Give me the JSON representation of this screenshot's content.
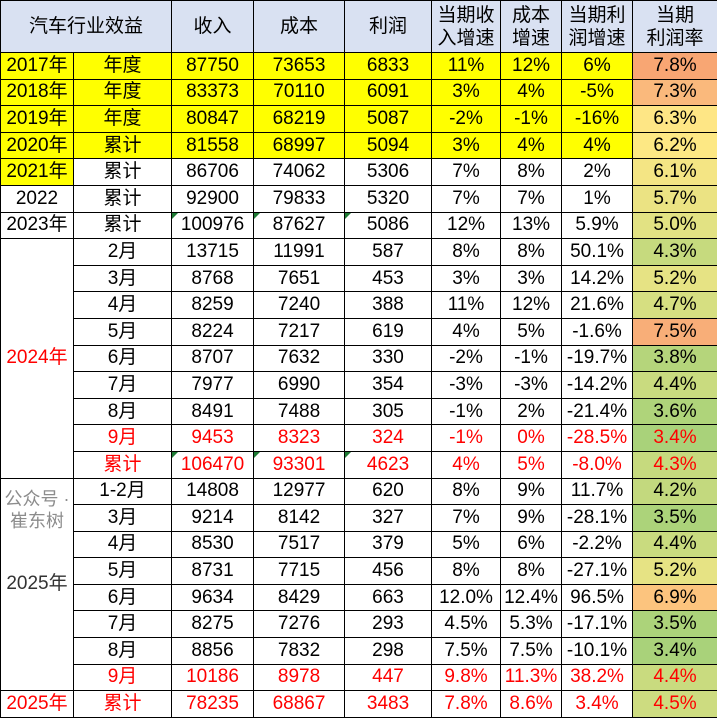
{
  "headers": [
    "汽车行业效益",
    "收入",
    "成本",
    "利润",
    "当期收\n入增速",
    "成本\n增速",
    "当期利\n润增速",
    "当期\n利润率"
  ],
  "colors": {
    "header_bg": "#d9e1f2",
    "highlight_yellow": "#ffff00",
    "red_text": "#ff0000"
  },
  "groups": [
    {
      "label": "2017年",
      "yellow": true,
      "rows": [
        {
          "period": "年度",
          "values": [
            "87750",
            "73653",
            "6833",
            "11%",
            "12%",
            "6%",
            "7.8%"
          ],
          "margin_color": "#f8a673"
        }
      ]
    },
    {
      "label": "2018年",
      "yellow": true,
      "rows": [
        {
          "period": "年度",
          "values": [
            "83373",
            "70110",
            "6091",
            "3%",
            "4%",
            "-5%",
            "7.3%"
          ],
          "margin_color": "#fab97c"
        }
      ]
    },
    {
      "label": "2019年",
      "yellow": true,
      "rows": [
        {
          "period": "年度",
          "values": [
            "80847",
            "68219",
            "5087",
            "-2%",
            "-1%",
            "-16%",
            "6.3%"
          ],
          "margin_color": "#fee685"
        }
      ]
    },
    {
      "label": "2020年",
      "yellow": true,
      "rows": [
        {
          "period": "累计",
          "values": [
            "81558",
            "68997",
            "5094",
            "3%",
            "4%",
            "4%",
            "6.2%"
          ],
          "margin_color": "#fde884"
        }
      ]
    },
    {
      "label": "2021年",
      "yellow": true,
      "label_only_yellow": true,
      "rows": [
        {
          "period": "累计",
          "values": [
            "86706",
            "74062",
            "5306",
            "7%",
            "8%",
            "2%",
            "6.1%"
          ],
          "margin_color": "#f4e584"
        }
      ]
    },
    {
      "label": "2022",
      "rows": [
        {
          "period": "累计",
          "values": [
            "92900",
            "79833",
            "5320",
            "7%",
            "7%",
            "1%",
            "5.7%"
          ],
          "margin_color": "#ebe383"
        }
      ]
    },
    {
      "label": "2023年",
      "rows": [
        {
          "period": "累计",
          "values": [
            "100976",
            "87627",
            "5086",
            "12%",
            "13%",
            "5.9%",
            "5.0%"
          ],
          "margin_color": "#e2e283",
          "marked": true
        }
      ]
    },
    {
      "label": "2024年",
      "label_red": true,
      "rows": [
        {
          "period": "2月",
          "values": [
            "13715",
            "11991",
            "587",
            "8%",
            "8%",
            "50.1%",
            "4.3%"
          ],
          "margin_color": "#c6da7e"
        },
        {
          "period": "3月",
          "values": [
            "8768",
            "7651",
            "453",
            "3%",
            "3%",
            "14.2%",
            "5.2%"
          ],
          "margin_color": "#e6e384"
        },
        {
          "period": "4月",
          "values": [
            "8259",
            "7240",
            "388",
            "11%",
            "12%",
            "21.6%",
            "4.7%"
          ],
          "margin_color": "#d6df81"
        },
        {
          "period": "5月",
          "values": [
            "8224",
            "7217",
            "619",
            "4%",
            "5%",
            "-1.6%",
            "7.5%"
          ],
          "margin_color": "#f8ae78"
        },
        {
          "period": "6月",
          "values": [
            "8707",
            "7632",
            "330",
            "-2%",
            "-1%",
            "-19.7%",
            "3.8%"
          ],
          "margin_color": "#b5d57b"
        },
        {
          "period": "7月",
          "values": [
            "7977",
            "6990",
            "354",
            "-3%",
            "-3%",
            "-14.2%",
            "4.4%"
          ],
          "margin_color": "#c9db7f"
        },
        {
          "period": "8月",
          "values": [
            "8491",
            "7488",
            "305",
            "-1%",
            "2%",
            "-21.4%",
            "3.6%"
          ],
          "margin_color": "#afd47a"
        },
        {
          "period": "9月",
          "red": true,
          "values": [
            "9453",
            "8323",
            "324",
            "-1%",
            "0%",
            "-28.5%",
            "3.4%"
          ],
          "margin_color": "#a9d27a"
        },
        {
          "period": "累计",
          "red": true,
          "marked": true,
          "values": [
            "106470",
            "93301",
            "4623",
            "4%",
            "5%",
            "-8.0%",
            "4.3%"
          ],
          "margin_color": "#c6da7e"
        }
      ]
    },
    {
      "label": "2025年",
      "label_grey": true,
      "rows": [
        {
          "period": "1-2月",
          "values": [
            "14808",
            "12977",
            "620",
            "8%",
            "9%",
            "11.7%",
            "4.2%"
          ],
          "margin_color": "#c3d97e"
        },
        {
          "period": "3月",
          "values": [
            "9214",
            "8142",
            "327",
            "7%",
            "9%",
            "-28.1%",
            "3.5%"
          ],
          "margin_color": "#acd37a"
        },
        {
          "period": "4月",
          "values": [
            "8530",
            "7517",
            "379",
            "5%",
            "6%",
            "-2.2%",
            "4.4%"
          ],
          "margin_color": "#c9db7f"
        },
        {
          "period": "5月",
          "values": [
            "8731",
            "7715",
            "456",
            "8%",
            "8%",
            "-27.1%",
            "5.2%"
          ],
          "margin_color": "#e6e384"
        },
        {
          "period": "6月",
          "values": [
            "9634",
            "8429",
            "663",
            "12.0%",
            "12.4%",
            "96.5%",
            "6.9%"
          ],
          "margin_color": "#fcc47e"
        },
        {
          "period": "7月",
          "values": [
            "8275",
            "7276",
            "293",
            "4.5%",
            "5.3%",
            "-17.1%",
            "3.5%"
          ],
          "margin_color": "#acd37a"
        },
        {
          "period": "8月",
          "values": [
            "8856",
            "7832",
            "298",
            "7.5%",
            "7.5%",
            "-10.1%",
            "3.4%"
          ],
          "margin_color": "#a9d27a"
        },
        {
          "period": "9月",
          "red": true,
          "values": [
            "10186",
            "8978",
            "447",
            "9.8%",
            "11.3%",
            "38.2%",
            "4.4%"
          ],
          "margin_color": "#c9db7f"
        }
      ]
    },
    {
      "label": "2025年",
      "label_red": true,
      "rows": [
        {
          "period": "累计",
          "red": true,
          "values": [
            "78235",
            "68867",
            "3483",
            "7.8%",
            "8.6%",
            "3.4%",
            "4.5%"
          ],
          "margin_color": "#cddc80"
        }
      ]
    }
  ],
  "watermark": "公众号 · 崔东树"
}
